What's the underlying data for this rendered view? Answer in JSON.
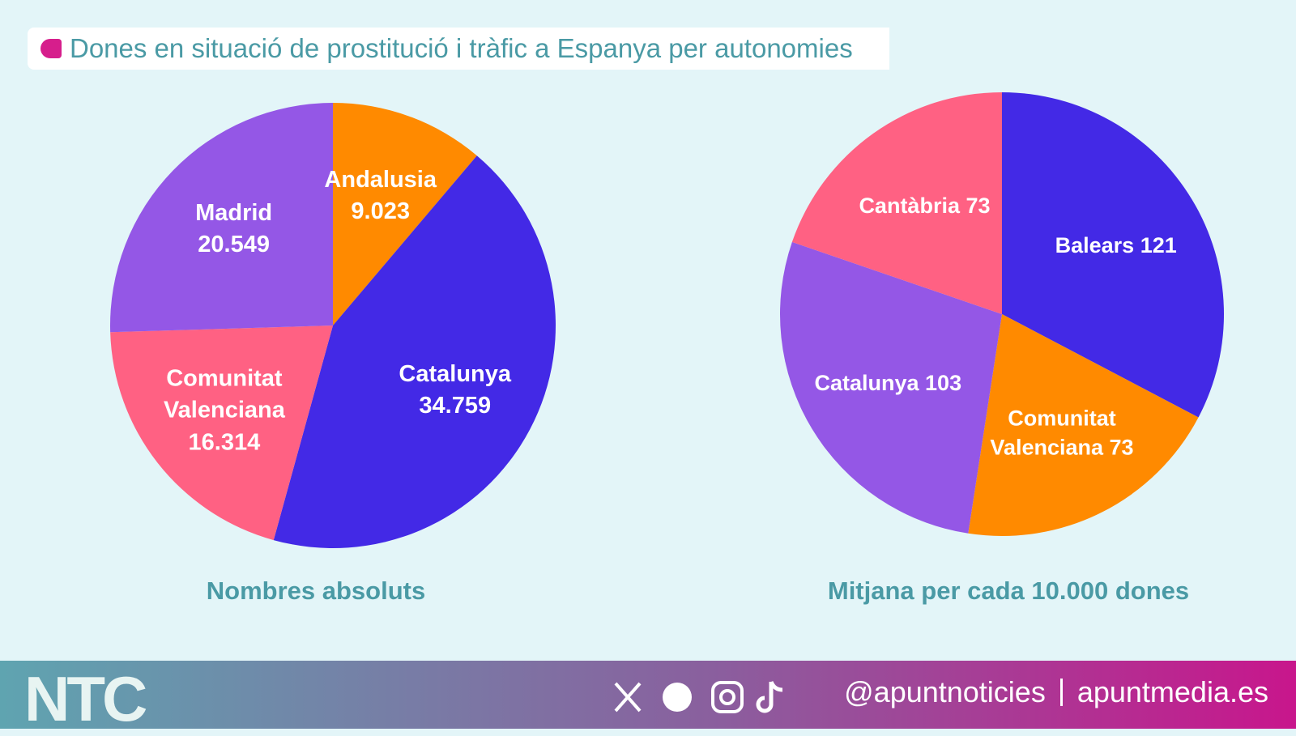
{
  "header": {
    "title": "Dones en situació de prostitució i tràfic a Espanya per autonomies"
  },
  "chart_data": [
    {
      "type": "pie",
      "title": "Nombres absoluts",
      "categories": [
        "Andalusia",
        "Catalunya",
        "Comunitat Valenciana",
        "Madrid"
      ],
      "values": [
        9023,
        34759,
        16314,
        20549
      ],
      "value_labels": [
        "9.023",
        "34.759",
        "16.314",
        "20.549"
      ],
      "colors": [
        "#ff8a00",
        "#4329e6",
        "#ff6183",
        "#9457e6"
      ]
    },
    {
      "type": "pie",
      "title": "Mitjana per cada 10.000 dones",
      "categories": [
        "Balears",
        "Comunitat Valenciana",
        "Catalunya",
        "Cantàbria"
      ],
      "values": [
        121,
        73,
        103,
        73
      ],
      "colors": [
        "#4329e6",
        "#ff8a00",
        "#9457e6",
        "#ff6183"
      ]
    }
  ],
  "footer": {
    "logo": "NTC",
    "handle": "@apuntnoticies",
    "site": "apuntmedia.es"
  }
}
